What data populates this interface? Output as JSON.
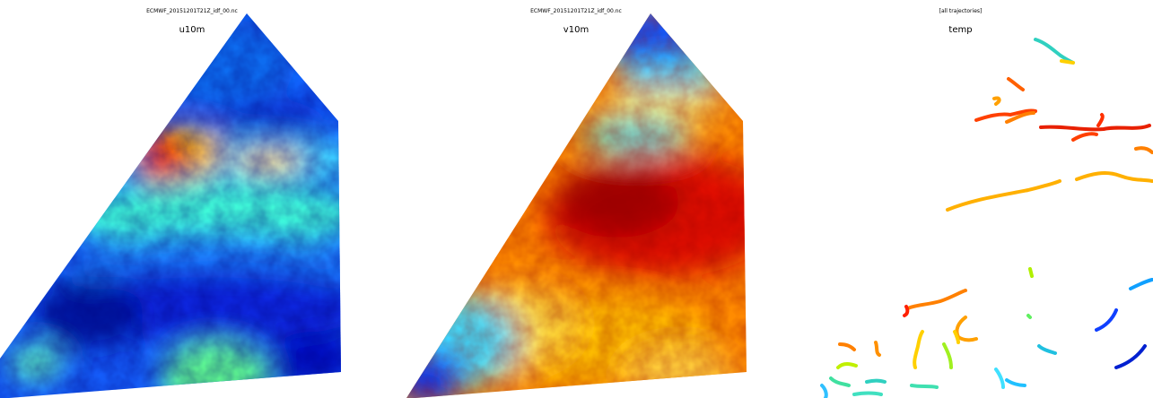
{
  "panels": [
    {
      "file_label": "ECMWF_20151201T21Z_idf_00.nc",
      "variable": "u10m"
    },
    {
      "file_label": "ECMWF_20151201T21Z_idf_00.nc",
      "variable": "v10m"
    },
    {
      "file_label": "[all trajectories]",
      "variable": "temp"
    }
  ],
  "colormap": [
    "#00008f",
    "#0000ff",
    "#0080ff",
    "#00ffff",
    "#80ff80",
    "#ffff00",
    "#ff8000",
    "#ff0000",
    "#800000"
  ]
}
